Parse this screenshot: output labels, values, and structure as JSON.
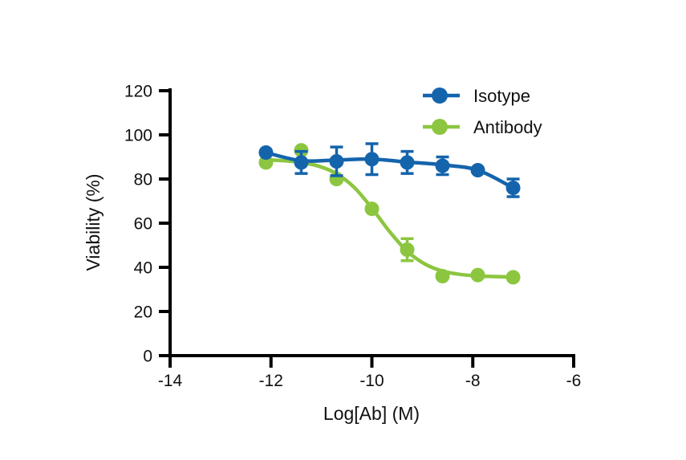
{
  "chart_data": {
    "type": "line",
    "title": "",
    "xlabel": "Log[Ab] (M)",
    "ylabel": "Viability (%)",
    "xlim": [
      -14,
      -6
    ],
    "ylim": [
      0,
      120
    ],
    "x_ticks": [
      -14,
      -12,
      -10,
      -8,
      -6
    ],
    "y_ticks": [
      0,
      20,
      40,
      60,
      80,
      100,
      120
    ],
    "grid": false,
    "legend_position": "top-right",
    "axis_color": "#000000",
    "x": [
      -12.1,
      -11.4,
      -10.7,
      -10.0,
      -9.3,
      -8.6,
      -7.9,
      -7.2
    ],
    "series": [
      {
        "name": "Isotype",
        "color": "#1464AC",
        "marker": "circle",
        "values": [
          92,
          87.5,
          88,
          89,
          87.5,
          86,
          84,
          76
        ],
        "errors": [
          0,
          5,
          6.5,
          7,
          5,
          4,
          0,
          4
        ],
        "curve": [
          [
            -12.1,
            92
          ],
          [
            -11.4,
            88.3
          ],
          [
            -10.7,
            88.6
          ],
          [
            -10.0,
            89
          ],
          [
            -9.3,
            87.7
          ],
          [
            -8.6,
            86.4
          ],
          [
            -7.9,
            84
          ],
          [
            -7.2,
            76
          ]
        ]
      },
      {
        "name": "Antibody",
        "color": "#8CC640",
        "marker": "circle",
        "values": [
          87.5,
          93,
          80,
          66.5,
          48,
          36,
          36.5,
          35.5
        ],
        "errors": [
          0,
          0,
          0,
          0,
          5,
          0,
          0,
          0
        ],
        "curve": [
          [
            -12.1,
            88.7
          ],
          [
            -11.75,
            88.3
          ],
          [
            -11.4,
            87.5
          ],
          [
            -11.05,
            85.8
          ],
          [
            -10.7,
            82.4
          ],
          [
            -10.35,
            76.2
          ],
          [
            -10.0,
            66.8
          ],
          [
            -9.65,
            56.2
          ],
          [
            -9.3,
            47.3
          ],
          [
            -8.95,
            41.5
          ],
          [
            -8.6,
            38.3
          ],
          [
            -8.25,
            36.8
          ],
          [
            -7.9,
            36.1
          ],
          [
            -7.55,
            35.8
          ],
          [
            -7.2,
            35.6
          ]
        ]
      }
    ]
  }
}
